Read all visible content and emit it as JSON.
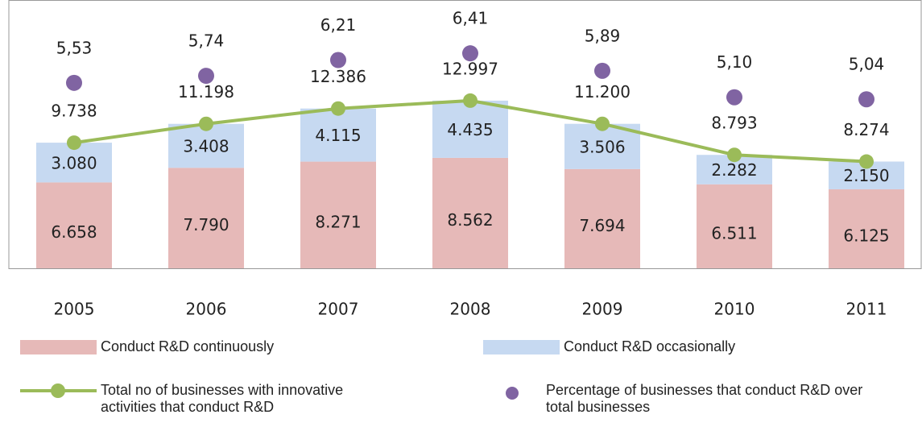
{
  "chart_data": {
    "type": "bar",
    "categories": [
      "2005",
      "2006",
      "2007",
      "2008",
      "2009",
      "2010",
      "2011"
    ],
    "ylim": [
      0,
      20800
    ],
    "y2lim": [
      0,
      8
    ],
    "stacked": true,
    "series": [
      {
        "name": "Conduct R&D continuously",
        "type": "bar",
        "color": "#e6b9b8",
        "values": [
          6658,
          7790,
          8271,
          8562,
          7694,
          6511,
          6125
        ],
        "value_labels": [
          "6.658",
          "7.790",
          "8.271",
          "8.562",
          "7.694",
          "6.511",
          "6.125"
        ]
      },
      {
        "name": "Conduct R&D occasionally",
        "type": "bar",
        "color": "#c6d9f1",
        "values": [
          3080,
          3408,
          4115,
          4435,
          3506,
          2282,
          2150
        ],
        "value_labels": [
          "3.080",
          "3.408",
          "4.115",
          "4.435",
          "3.506",
          "2.282",
          "2.150"
        ]
      },
      {
        "name": "Total no of businesses with innovative activities that conduct R&D",
        "type": "line",
        "color": "#9bbb59",
        "values": [
          9738,
          11198,
          12386,
          12997,
          11200,
          8793,
          8274
        ],
        "value_labels": [
          "9.738",
          "11.198",
          "12.386",
          "12.997",
          "11.200",
          "8.793",
          "8.274"
        ]
      },
      {
        "name": "Percentage of businesses that conduct R&D over total businesses",
        "type": "scatter",
        "axis": "y2",
        "color": "#8064a2",
        "values": [
          5.53,
          5.74,
          6.21,
          6.41,
          5.89,
          5.1,
          5.04
        ],
        "value_labels": [
          "5,53",
          "5,74",
          "6,21",
          "6,41",
          "5,89",
          "5,10",
          "5,04"
        ]
      }
    ]
  }
}
